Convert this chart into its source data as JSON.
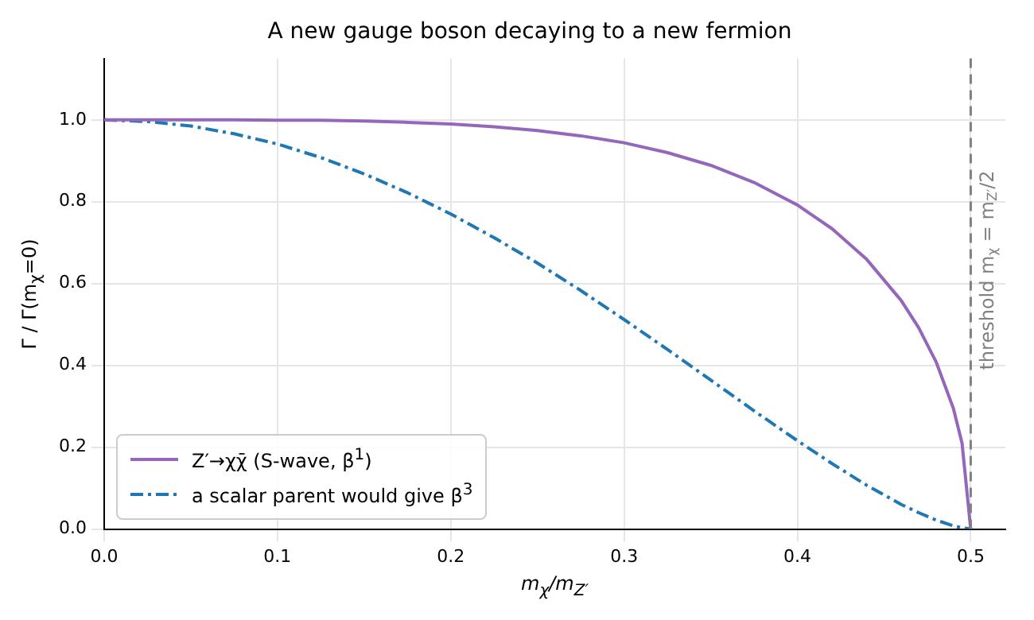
{
  "chart_data": {
    "type": "line",
    "title": "A new gauge boson decaying to a new fermion",
    "xlabel": "m$_{χ}$/m$_{Z′}$",
    "ylabel": "Γ / Γ(m$_{χ}$=0)",
    "x": [
      0,
      0.025,
      0.05,
      0.075,
      0.1,
      0.125,
      0.15,
      0.175,
      0.2,
      0.225,
      0.25,
      0.275,
      0.3,
      0.325,
      0.35,
      0.375,
      0.4,
      0.42,
      0.44,
      0.46,
      0.47,
      0.48,
      0.49,
      0.495,
      0.5
    ],
    "series": [
      {
        "name": "Z′→χχ̄  (S-wave, β$^{1}$)",
        "color": "#9467bd",
        "line_style": "solid",
        "values": [
          1,
          1.0,
          1.0,
          1.0,
          0.999,
          0.999,
          0.997,
          0.994,
          0.99,
          0.983,
          0.974,
          0.961,
          0.944,
          0.92,
          0.889,
          0.847,
          0.792,
          0.734,
          0.659,
          0.558,
          0.492,
          0.409,
          0.295,
          0.21,
          0
        ]
      },
      {
        "name": "a scalar parent would give β$^{3}$",
        "color": "#1f77b4",
        "line_style": "dashed",
        "values": [
          1,
          0.996,
          0.985,
          0.966,
          0.941,
          0.908,
          0.868,
          0.822,
          0.77,
          0.712,
          0.65,
          0.583,
          0.512,
          0.439,
          0.364,
          0.289,
          0.216,
          0.16,
          0.107,
          0.06,
          0.04,
          0.022,
          0.008,
          0.003,
          0
        ]
      }
    ],
    "xlim": [
      0,
      0.52
    ],
    "xticks": [
      {
        "value": 0,
        "label": "0.0"
      },
      0.1,
      0.2,
      0.3,
      0.4,
      0.5
    ],
    "ylim": [
      0,
      1.15
    ],
    "yticks": [
      {
        "value": 0,
        "label": "0.0"
      },
      0.2,
      0.4,
      0.6,
      0.8,
      {
        "value": 1,
        "label": "1.0"
      }
    ],
    "ref_lines": [
      {
        "axis": "x",
        "value": 0.5,
        "label": "threshold m$_{χ}$ = m$_{Z′}$/2",
        "color": "#808080",
        "line_style": "dashed"
      }
    ],
    "grid": true,
    "legend": "bottom left",
    "marker": "none"
  }
}
